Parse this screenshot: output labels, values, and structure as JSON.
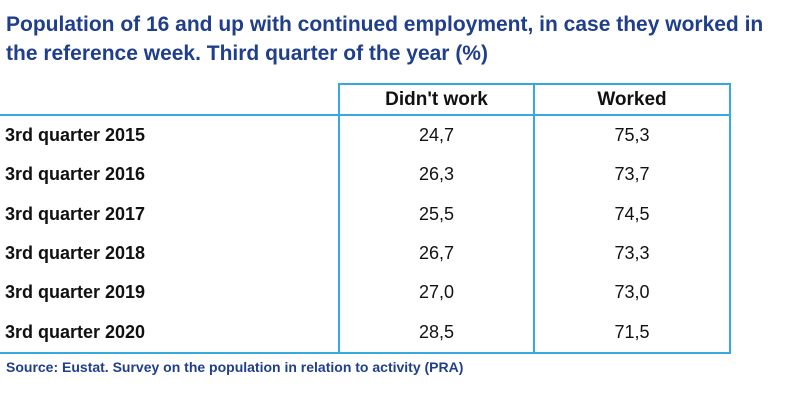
{
  "title": "Population of 16 and up with continued employment, in case they worked in the reference week. Third quarter of the year (%)",
  "table": {
    "columns": [
      "",
      "Didn't work",
      "Worked"
    ],
    "rows": [
      {
        "label": "3rd quarter 2015",
        "didnt_work": "24,7",
        "worked": "75,3"
      },
      {
        "label": "3rd quarter 2016",
        "didnt_work": "26,3",
        "worked": "73,7"
      },
      {
        "label": "3rd quarter 2017",
        "didnt_work": "25,5",
        "worked": "74,5"
      },
      {
        "label": "3rd quarter 2018",
        "didnt_work": "26,7",
        "worked": "73,3"
      },
      {
        "label": "3rd quarter 2019",
        "didnt_work": "27,0",
        "worked": "73,0"
      },
      {
        "label": "3rd quarter 2020",
        "didnt_work": "28,5",
        "worked": "71,5"
      }
    ]
  },
  "source": "Source: Eustat. Survey on the population in relation to activity (PRA)",
  "colors": {
    "title": "#1f3e8c",
    "border": "#36a9e1"
  }
}
